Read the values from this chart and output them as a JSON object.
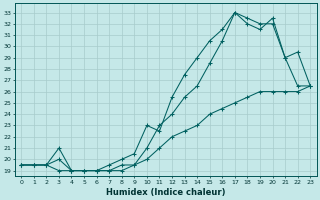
{
  "xlabel": "Humidex (Indice chaleur)",
  "background_color": "#c5e8e8",
  "grid_color": "#a8cccc",
  "line_color": "#006060",
  "xlim": [
    -0.5,
    23.5
  ],
  "ylim": [
    18.5,
    33.8
  ],
  "yticks": [
    19,
    20,
    21,
    22,
    23,
    24,
    25,
    26,
    27,
    28,
    29,
    30,
    31,
    32,
    33
  ],
  "xticks": [
    0,
    1,
    2,
    3,
    4,
    5,
    6,
    7,
    8,
    9,
    10,
    11,
    12,
    13,
    14,
    15,
    16,
    17,
    18,
    19,
    20,
    21,
    22,
    23
  ],
  "line1_x": [
    0,
    1,
    2,
    3,
    4,
    5,
    6,
    7,
    8,
    9,
    10,
    11,
    12,
    13,
    14,
    15,
    16,
    17,
    18,
    19,
    20,
    21,
    22,
    23
  ],
  "line1_y": [
    19.5,
    19.5,
    19.5,
    19.0,
    19.0,
    19.0,
    19.0,
    19.0,
    19.0,
    19.5,
    20.0,
    21.0,
    22.0,
    22.5,
    23.0,
    24.0,
    24.5,
    25.0,
    25.5,
    26.0,
    26.0,
    26.0,
    26.0,
    26.5
  ],
  "line2_x": [
    0,
    1,
    2,
    3,
    4,
    5,
    6,
    7,
    8,
    9,
    10,
    11,
    12,
    13,
    14,
    15,
    16,
    17,
    18,
    19,
    20,
    21,
    22,
    23
  ],
  "line2_y": [
    19.5,
    19.5,
    19.5,
    20.0,
    19.0,
    19.0,
    19.0,
    19.0,
    19.5,
    19.5,
    21.0,
    23.0,
    24.0,
    25.5,
    26.5,
    28.5,
    30.5,
    33.0,
    32.5,
    32.0,
    32.0,
    29.0,
    26.5,
    26.5
  ],
  "line3_x": [
    0,
    1,
    2,
    3,
    4,
    5,
    6,
    7,
    8,
    9,
    10,
    11,
    12,
    13,
    14,
    15,
    16,
    17,
    18,
    19,
    20,
    21,
    22,
    23
  ],
  "line3_y": [
    19.5,
    19.5,
    19.5,
    21.0,
    19.0,
    19.0,
    19.0,
    19.5,
    20.0,
    20.5,
    23.0,
    22.5,
    25.5,
    27.5,
    29.0,
    30.5,
    31.5,
    33.0,
    32.0,
    31.5,
    32.5,
    29.0,
    29.5,
    26.5
  ]
}
